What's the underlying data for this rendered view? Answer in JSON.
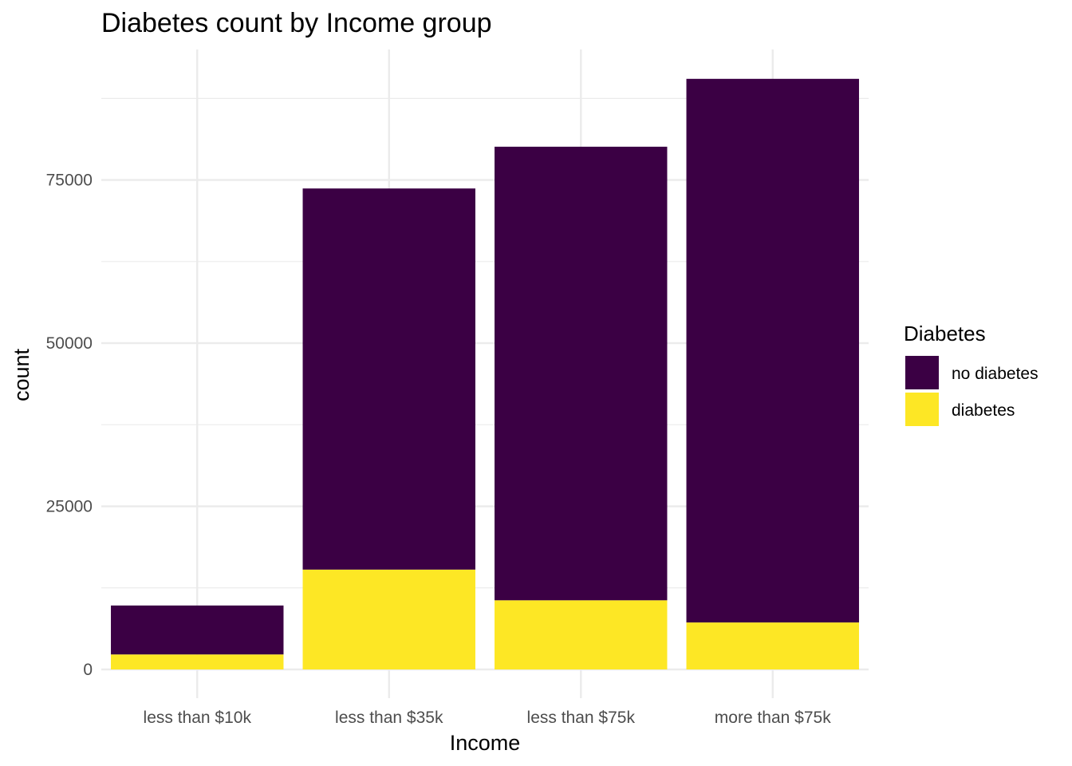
{
  "chart_data": {
    "type": "bar",
    "stacked": true,
    "title": "Diabetes count by Income group",
    "xlabel": "Income",
    "ylabel": "count",
    "categories": [
      "less than $10k",
      "less than $35k",
      "less than $75k",
      "more than $75k"
    ],
    "series": [
      {
        "name": "no diabetes",
        "color": "#3B0044",
        "values": [
          7500,
          58400,
          69500,
          83300
        ]
      },
      {
        "name": "diabetes",
        "color": "#FDE725",
        "values": [
          2300,
          15300,
          10600,
          7200
        ]
      }
    ],
    "ylim": [
      0,
      95000
    ],
    "yticks": [
      0,
      25000,
      50000,
      75000
    ],
    "y_minor_gridlines": [
      12500,
      37500,
      62500,
      87500
    ],
    "grid": true,
    "legend": {
      "title": "Diabetes",
      "position": "right"
    }
  }
}
